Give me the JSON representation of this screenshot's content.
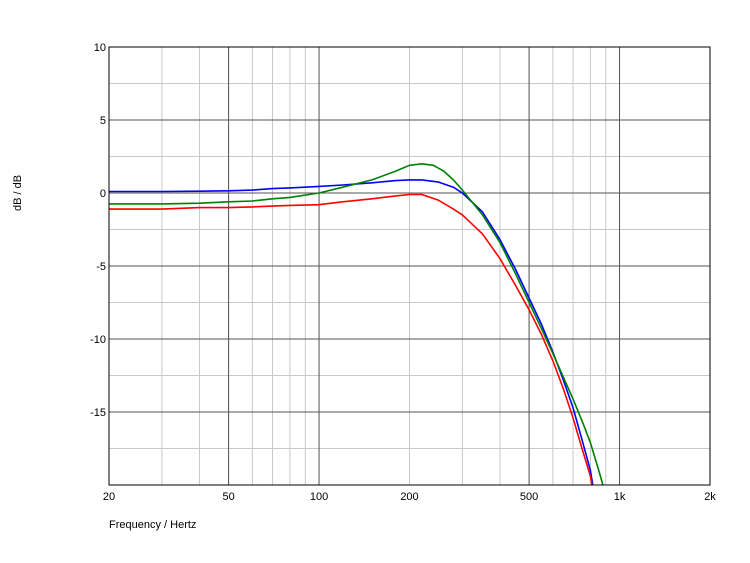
{
  "chart_data": {
    "type": "line",
    "title": "",
    "xlabel": "Frequency / Hertz",
    "ylabel": "dB / dB",
    "x_scale": "log",
    "xlim": [
      20,
      2000
    ],
    "ylim": [
      -20,
      10
    ],
    "x_ticks": [
      {
        "value": 20,
        "label": "20"
      },
      {
        "value": 50,
        "label": "50"
      },
      {
        "value": 100,
        "label": "100"
      },
      {
        "value": 200,
        "label": "200"
      },
      {
        "value": 500,
        "label": "500"
      },
      {
        "value": 1000,
        "label": "1k"
      },
      {
        "value": 2000,
        "label": "2k"
      }
    ],
    "y_ticks": [
      {
        "value": 10,
        "label": "10"
      },
      {
        "value": 5,
        "label": "5"
      },
      {
        "value": 0,
        "label": "0"
      },
      {
        "value": -5,
        "label": "-5"
      },
      {
        "value": -10,
        "label": "-10"
      },
      {
        "value": -15,
        "label": "-15"
      }
    ],
    "grid": true,
    "legend": "none",
    "series": [
      {
        "color": "#0000ff",
        "points": [
          [
            20,
            0.1
          ],
          [
            30,
            0.1
          ],
          [
            40,
            0.12
          ],
          [
            50,
            0.15
          ],
          [
            60,
            0.2
          ],
          [
            70,
            0.3
          ],
          [
            80,
            0.35
          ],
          [
            100,
            0.45
          ],
          [
            120,
            0.55
          ],
          [
            150,
            0.7
          ],
          [
            180,
            0.85
          ],
          [
            200,
            0.9
          ],
          [
            220,
            0.9
          ],
          [
            250,
            0.75
          ],
          [
            280,
            0.4
          ],
          [
            300,
            0.0
          ],
          [
            350,
            -1.3
          ],
          [
            400,
            -3.2
          ],
          [
            450,
            -5.2
          ],
          [
            500,
            -7.2
          ],
          [
            550,
            -9.0
          ],
          [
            600,
            -10.9
          ],
          [
            650,
            -12.8
          ],
          [
            700,
            -14.7
          ],
          [
            750,
            -16.9
          ],
          [
            800,
            -19.0
          ],
          [
            815,
            -20.0
          ]
        ]
      },
      {
        "color": "#008000",
        "points": [
          [
            20,
            -0.75
          ],
          [
            30,
            -0.75
          ],
          [
            40,
            -0.7
          ],
          [
            50,
            -0.6
          ],
          [
            60,
            -0.55
          ],
          [
            70,
            -0.4
          ],
          [
            80,
            -0.3
          ],
          [
            100,
            0.0
          ],
          [
            120,
            0.4
          ],
          [
            150,
            0.9
          ],
          [
            180,
            1.5
          ],
          [
            200,
            1.9
          ],
          [
            220,
            2.0
          ],
          [
            240,
            1.9
          ],
          [
            260,
            1.5
          ],
          [
            280,
            0.9
          ],
          [
            300,
            0.2
          ],
          [
            350,
            -1.5
          ],
          [
            400,
            -3.4
          ],
          [
            450,
            -5.5
          ],
          [
            500,
            -7.5
          ],
          [
            550,
            -9.3
          ],
          [
            600,
            -11.0
          ],
          [
            650,
            -12.6
          ],
          [
            700,
            -14.1
          ],
          [
            750,
            -15.6
          ],
          [
            800,
            -17.1
          ],
          [
            850,
            -18.9
          ],
          [
            880,
            -20.0
          ]
        ]
      },
      {
        "color": "#ff0000",
        "points": [
          [
            20,
            -1.1
          ],
          [
            30,
            -1.1
          ],
          [
            40,
            -1.0
          ],
          [
            50,
            -1.0
          ],
          [
            60,
            -0.95
          ],
          [
            70,
            -0.9
          ],
          [
            80,
            -0.85
          ],
          [
            100,
            -0.8
          ],
          [
            120,
            -0.6
          ],
          [
            150,
            -0.4
          ],
          [
            180,
            -0.2
          ],
          [
            200,
            -0.1
          ],
          [
            220,
            -0.1
          ],
          [
            250,
            -0.5
          ],
          [
            280,
            -1.1
          ],
          [
            300,
            -1.5
          ],
          [
            350,
            -2.8
          ],
          [
            400,
            -4.5
          ],
          [
            450,
            -6.3
          ],
          [
            500,
            -8.0
          ],
          [
            550,
            -9.7
          ],
          [
            600,
            -11.5
          ],
          [
            650,
            -13.4
          ],
          [
            700,
            -15.4
          ],
          [
            750,
            -17.5
          ],
          [
            800,
            -19.4
          ],
          [
            810,
            -20.0
          ]
        ]
      }
    ]
  }
}
